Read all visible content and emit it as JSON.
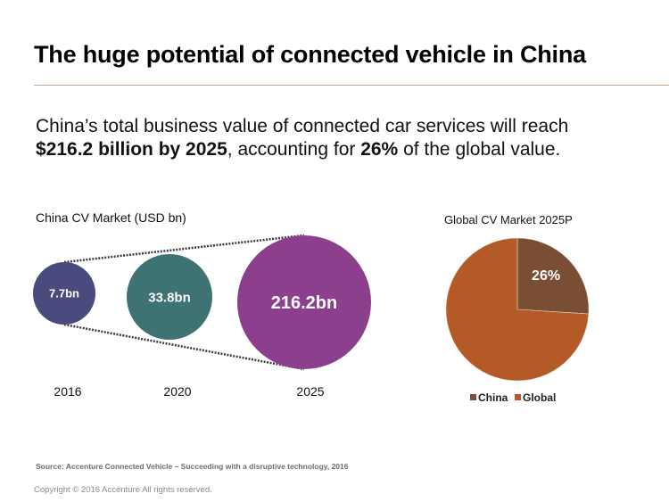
{
  "header": {
    "title": "The huge potential of connected vehicle in China"
  },
  "summary": {
    "line1": "China’s total business value of connected car services will reach",
    "line2_bold_a": "$216.2 billion by 2025",
    "line2_mid": ", accounting for ",
    "line2_bold_b": "26%",
    "line2_end": " of the global value."
  },
  "chart_data": [
    {
      "type": "bubble",
      "title": "China CV Market (USD bn)",
      "categories": [
        "2016",
        "2020",
        "2025"
      ],
      "values": [
        7.7,
        33.8,
        216.2
      ],
      "labels": [
        "7.7bn",
        "33.8bn",
        "216.2bn"
      ],
      "colors": [
        "#4a4a7e",
        "#3e7273",
        "#8b3f8d"
      ],
      "connector": "dotted"
    },
    {
      "type": "pie",
      "title": "Global CV Market 2025P",
      "slices": [
        {
          "name": "China",
          "value": 26,
          "color": "#7a4e34",
          "label": "26%"
        },
        {
          "name": "Global",
          "value": 74,
          "color": "#b35a27",
          "label": ""
        }
      ],
      "legend": [
        "China",
        "Global"
      ],
      "legend_position": "bottom"
    }
  ],
  "footer": {
    "source": "Source: Accenture Connected Vehicle – Succeeding with a disruptive technology, 2016",
    "copyright": "Copyright © 2016 Accenture  All rights reserved."
  }
}
